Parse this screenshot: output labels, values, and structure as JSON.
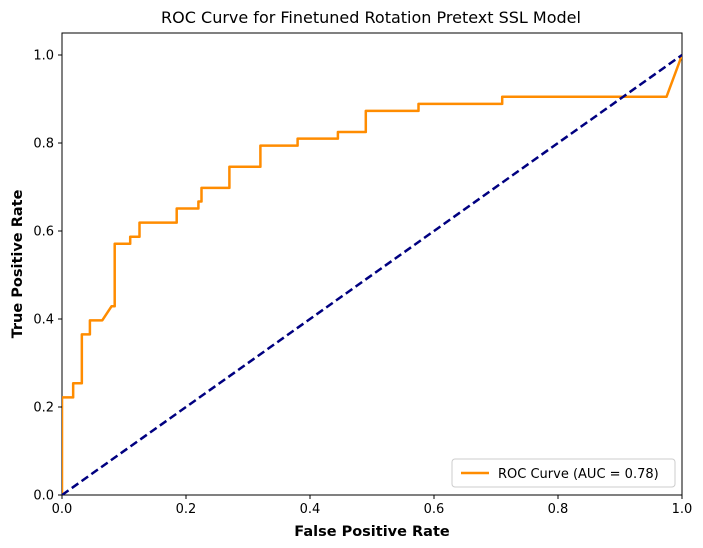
{
  "chart_data": {
    "type": "line",
    "title": "ROC Curve for Finetuned Rotation Pretext SSL Model",
    "xlabel": "False Positive Rate",
    "ylabel": "True Positive Rate",
    "xlim": [
      0.0,
      1.0
    ],
    "ylim": [
      0.0,
      1.05
    ],
    "xticks": [
      0.0,
      0.2,
      0.4,
      0.6,
      0.8,
      1.0
    ],
    "yticks": [
      0.0,
      0.2,
      0.4,
      0.6,
      0.8,
      1.0
    ],
    "xtick_labels": [
      "0.0",
      "0.2",
      "0.4",
      "0.6",
      "0.8",
      "1.0"
    ],
    "ytick_labels": [
      "0.0",
      "0.2",
      "0.4",
      "0.6",
      "0.8",
      "1.0"
    ],
    "grid": false,
    "legend_position": "lower-right",
    "series": [
      {
        "name": "ROC Curve (AUC = 0.78)",
        "color": "#ff8c00",
        "style": "solid",
        "x": [
          0.0,
          0.0,
          0.018,
          0.018,
          0.032,
          0.032,
          0.045,
          0.045,
          0.065,
          0.08,
          0.085,
          0.085,
          0.11,
          0.11,
          0.125,
          0.125,
          0.185,
          0.185,
          0.22,
          0.22,
          0.225,
          0.225,
          0.27,
          0.27,
          0.32,
          0.32,
          0.38,
          0.38,
          0.445,
          0.445,
          0.49,
          0.49,
          0.575,
          0.575,
          0.71,
          0.71,
          0.975,
          1.0
        ],
        "y": [
          0.0,
          0.222,
          0.222,
          0.254,
          0.254,
          0.365,
          0.365,
          0.397,
          0.397,
          0.429,
          0.429,
          0.571,
          0.571,
          0.587,
          0.587,
          0.619,
          0.619,
          0.651,
          0.651,
          0.667,
          0.667,
          0.698,
          0.698,
          0.746,
          0.746,
          0.794,
          0.794,
          0.81,
          0.81,
          0.825,
          0.825,
          0.873,
          0.873,
          0.889,
          0.889,
          0.905,
          0.905,
          1.0
        ]
      },
      {
        "name": "",
        "color": "#000080",
        "style": "dashed",
        "x": [
          0.0,
          1.0
        ],
        "y": [
          0.0,
          1.0
        ]
      }
    ]
  }
}
